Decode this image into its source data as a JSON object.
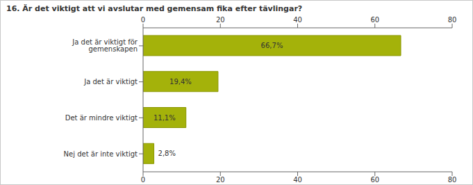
{
  "chart_data": {
    "type": "bar",
    "title": "16. Är det viktigt att vi avslutar med gemensam fika efter tävlingar?",
    "categories": [
      "Ja det är viktigt för gemenskapen",
      "Ja det är viktigt",
      "Det är mindre viktigt",
      "Nej det är inte viktigt"
    ],
    "values": [
      66.7,
      19.4,
      11.1,
      2.8
    ],
    "value_labels": [
      "66,7%",
      "19,4%",
      "11,1%",
      "2,8%"
    ],
    "color": "#a4b20a",
    "orientation": "horizontal",
    "xlim": [
      0,
      80
    ],
    "xticks": [
      0,
      20,
      40,
      60,
      80
    ],
    "grid": false,
    "data_labels": true
  }
}
